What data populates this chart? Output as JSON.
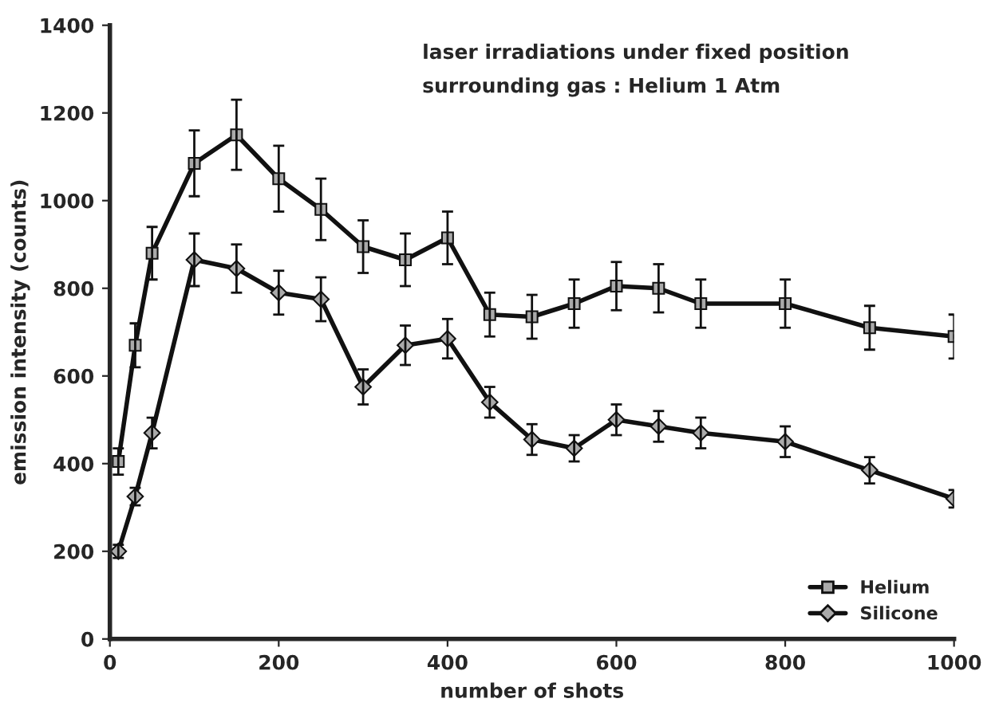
{
  "chart_data": {
    "type": "line",
    "annotations": [
      "laser irradiations under fixed position",
      "surrounding gas : Helium 1 Atm"
    ],
    "xlabel": "number of shots",
    "ylabel": "emission intensity (counts)",
    "x": [
      10,
      30,
      50,
      100,
      150,
      200,
      250,
      300,
      350,
      400,
      450,
      500,
      550,
      600,
      650,
      700,
      800,
      900,
      1000
    ],
    "series": [
      {
        "name": "Helium",
        "color": "#111111",
        "marker": "square",
        "values": [
          405,
          670,
          880,
          1085,
          1150,
          1050,
          980,
          895,
          865,
          915,
          740,
          735,
          765,
          805,
          800,
          765,
          765,
          710,
          690
        ],
        "errors": [
          30,
          50,
          60,
          75,
          80,
          75,
          70,
          60,
          60,
          60,
          50,
          50,
          55,
          55,
          55,
          55,
          55,
          50,
          50
        ]
      },
      {
        "name": "Silicone",
        "color": "#111111",
        "marker": "diamond",
        "values": [
          200,
          325,
          470,
          865,
          845,
          790,
          775,
          575,
          670,
          685,
          540,
          455,
          435,
          500,
          485,
          470,
          450,
          385,
          320
        ],
        "errors": [
          15,
          20,
          35,
          60,
          55,
          50,
          50,
          40,
          45,
          45,
          35,
          35,
          30,
          35,
          35,
          35,
          35,
          30,
          20
        ]
      }
    ],
    "xlim": [
      0,
      1000
    ],
    "xticks": [
      0,
      200,
      400,
      600,
      800,
      1000
    ],
    "ylim": [
      0,
      1400
    ],
    "yticks": [
      0,
      200,
      400,
      600,
      800,
      1000,
      1200,
      1400
    ],
    "grid": false,
    "legend": "bottom right",
    "line_style": "solid"
  }
}
